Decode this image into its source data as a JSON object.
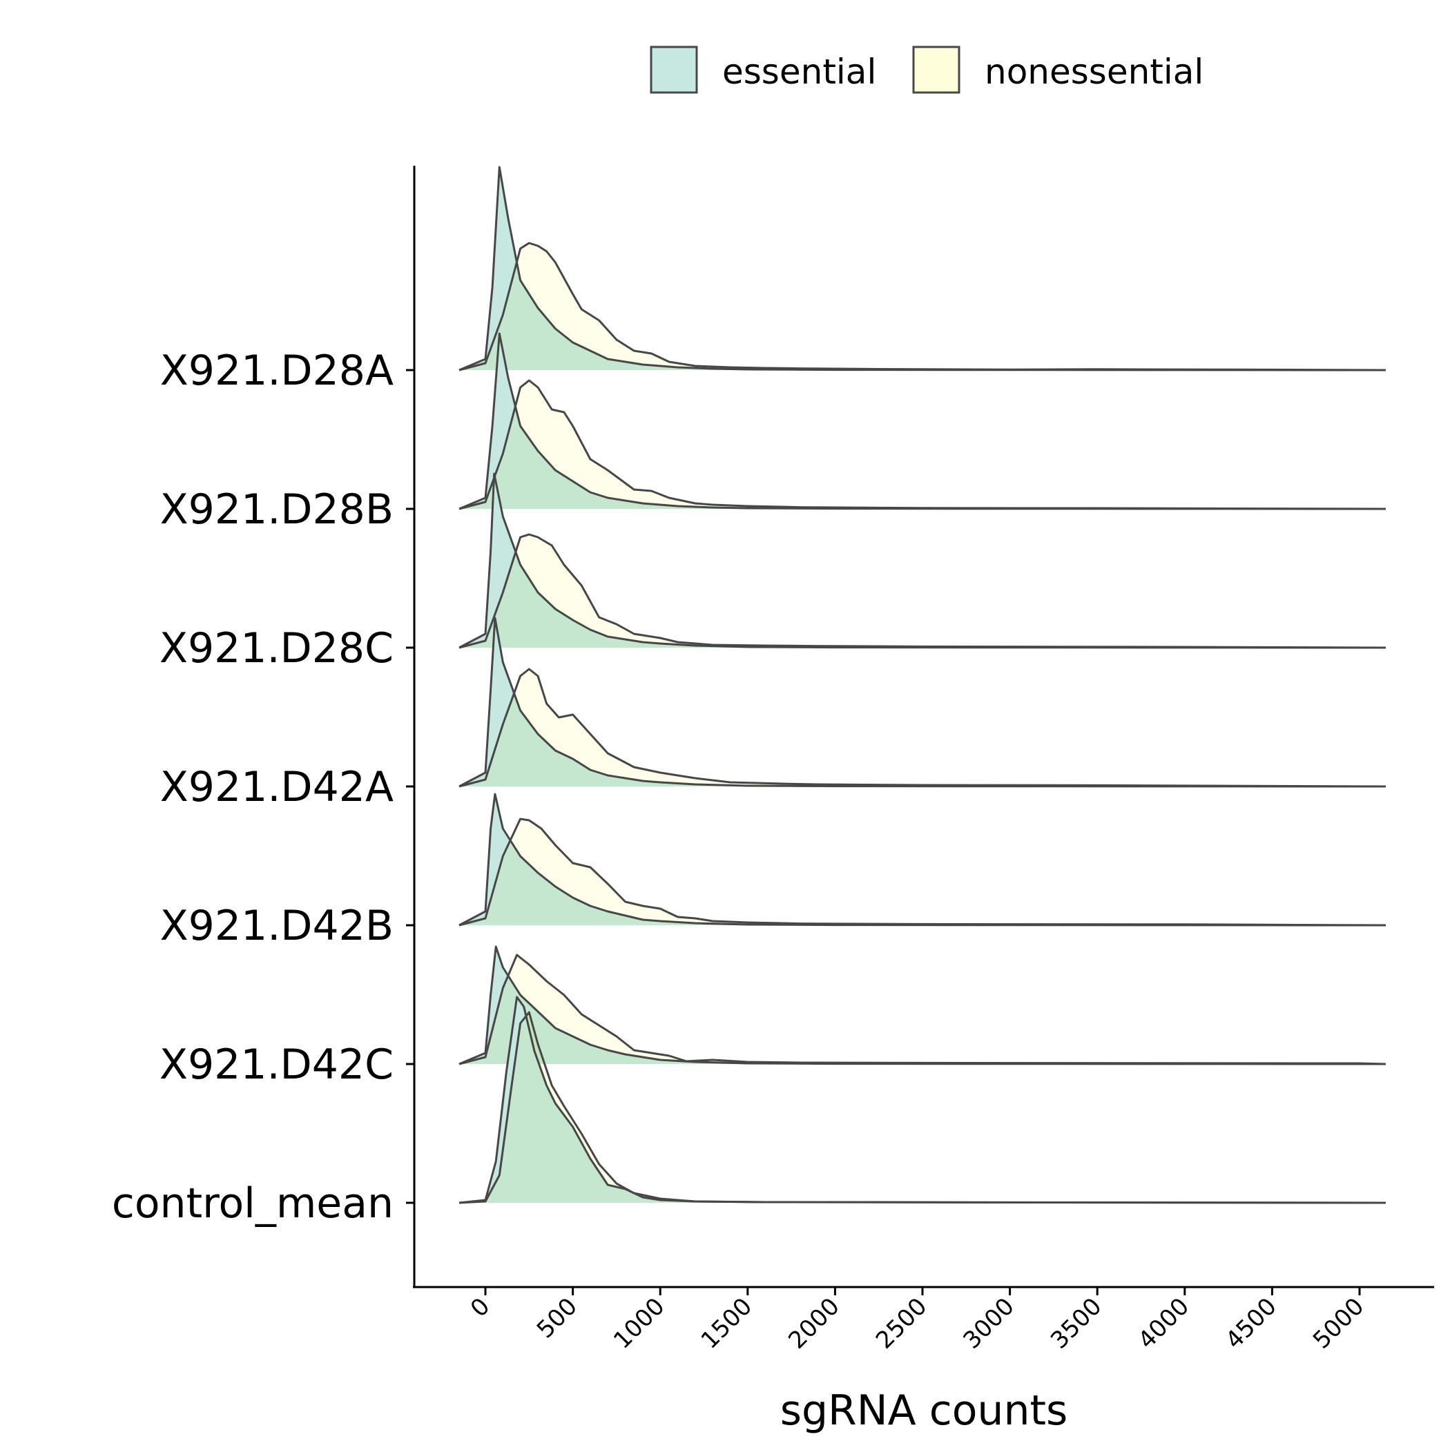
{
  "chart_data": {
    "type": "area",
    "subtype": "ridgeline-density",
    "xlabel": "sgRNA counts",
    "ylabel": "",
    "xlim": [
      -150,
      5150
    ],
    "x_ticks": [
      0,
      500,
      1000,
      1500,
      2000,
      2500,
      3000,
      3500,
      4000,
      4500,
      5000
    ],
    "x_tick_labels": [
      "0",
      "500",
      "1000",
      "1500",
      "2000",
      "2500",
      "3000",
      "3500",
      "4000",
      "4500",
      "5000"
    ],
    "categories": [
      "X921.D28A",
      "X921.D28B",
      "X921.D28C",
      "X921.D42A",
      "X921.D42B",
      "X921.D42C",
      "control_mean"
    ],
    "legend": {
      "position": "top",
      "entries": [
        {
          "label": "essential",
          "color": "#c6e8e1"
        },
        {
          "label": "nonessential",
          "color": "#fefedb"
        }
      ]
    },
    "grid": false,
    "density_unit_note": "",
    "series": [
      {
        "name": "X921.D28A",
        "essential": [
          [
            -150,
            0
          ],
          [
            0,
            0.08
          ],
          [
            40,
            0.6
          ],
          [
            80,
            1.47
          ],
          [
            130,
            1.1
          ],
          [
            200,
            0.65
          ],
          [
            300,
            0.45
          ],
          [
            400,
            0.3
          ],
          [
            500,
            0.2
          ],
          [
            600,
            0.14
          ],
          [
            700,
            0.08
          ],
          [
            800,
            0.06
          ],
          [
            900,
            0.04
          ],
          [
            1000,
            0.03
          ],
          [
            1100,
            0.02
          ],
          [
            1300,
            0.01
          ],
          [
            1500,
            0.005
          ],
          [
            2000,
            0.002
          ],
          [
            5150,
            0
          ]
        ],
        "nonessential": [
          [
            -150,
            0
          ],
          [
            0,
            0.05
          ],
          [
            100,
            0.4
          ],
          [
            200,
            0.88
          ],
          [
            250,
            0.92
          ],
          [
            300,
            0.9
          ],
          [
            350,
            0.86
          ],
          [
            400,
            0.78
          ],
          [
            500,
            0.55
          ],
          [
            550,
            0.44
          ],
          [
            650,
            0.36
          ],
          [
            750,
            0.22
          ],
          [
            850,
            0.14
          ],
          [
            950,
            0.12
          ],
          [
            1050,
            0.06
          ],
          [
            1200,
            0.03
          ],
          [
            1400,
            0.02
          ],
          [
            1600,
            0.015
          ],
          [
            1800,
            0.012
          ],
          [
            2200,
            0.008
          ],
          [
            3000,
            0.004
          ],
          [
            3500,
            0.006
          ],
          [
            4500,
            0.003
          ],
          [
            5150,
            0
          ]
        ]
      },
      {
        "name": "X921.D28B",
        "essential": [
          [
            -150,
            0
          ],
          [
            0,
            0.08
          ],
          [
            40,
            0.6
          ],
          [
            80,
            1.27
          ],
          [
            130,
            0.95
          ],
          [
            200,
            0.6
          ],
          [
            300,
            0.42
          ],
          [
            400,
            0.28
          ],
          [
            500,
            0.2
          ],
          [
            600,
            0.12
          ],
          [
            700,
            0.08
          ],
          [
            800,
            0.06
          ],
          [
            900,
            0.04
          ],
          [
            1000,
            0.03
          ],
          [
            1100,
            0.02
          ],
          [
            1300,
            0.01
          ],
          [
            1500,
            0.005
          ],
          [
            2000,
            0.002
          ],
          [
            5150,
            0
          ]
        ],
        "nonessential": [
          [
            -150,
            0
          ],
          [
            0,
            0.05
          ],
          [
            100,
            0.4
          ],
          [
            200,
            0.88
          ],
          [
            250,
            0.93
          ],
          [
            300,
            0.88
          ],
          [
            380,
            0.72
          ],
          [
            450,
            0.7
          ],
          [
            500,
            0.6
          ],
          [
            600,
            0.36
          ],
          [
            700,
            0.28
          ],
          [
            850,
            0.14
          ],
          [
            950,
            0.13
          ],
          [
            1050,
            0.08
          ],
          [
            1200,
            0.04
          ],
          [
            1300,
            0.03
          ],
          [
            1500,
            0.02
          ],
          [
            1800,
            0.012
          ],
          [
            2500,
            0.006
          ],
          [
            3500,
            0.005
          ],
          [
            5150,
            0
          ]
        ]
      },
      {
        "name": "X921.D28C",
        "essential": [
          [
            -150,
            0
          ],
          [
            0,
            0.1
          ],
          [
            30,
            0.7
          ],
          [
            50,
            1.26
          ],
          [
            100,
            0.95
          ],
          [
            200,
            0.6
          ],
          [
            300,
            0.4
          ],
          [
            400,
            0.28
          ],
          [
            500,
            0.2
          ],
          [
            600,
            0.13
          ],
          [
            700,
            0.08
          ],
          [
            800,
            0.06
          ],
          [
            900,
            0.04
          ],
          [
            1000,
            0.03
          ],
          [
            1200,
            0.015
          ],
          [
            1500,
            0.005
          ],
          [
            2000,
            0.002
          ],
          [
            5150,
            0
          ]
        ],
        "nonessential": [
          [
            -150,
            0
          ],
          [
            0,
            0.05
          ],
          [
            100,
            0.4
          ],
          [
            200,
            0.8
          ],
          [
            250,
            0.82
          ],
          [
            300,
            0.8
          ],
          [
            380,
            0.74
          ],
          [
            450,
            0.6
          ],
          [
            550,
            0.45
          ],
          [
            650,
            0.22
          ],
          [
            750,
            0.17
          ],
          [
            850,
            0.1
          ],
          [
            1000,
            0.07
          ],
          [
            1100,
            0.04
          ],
          [
            1300,
            0.02
          ],
          [
            1600,
            0.015
          ],
          [
            1900,
            0.012
          ],
          [
            2500,
            0.008
          ],
          [
            4000,
            0.005
          ],
          [
            5150,
            0
          ]
        ]
      },
      {
        "name": "X921.D42A",
        "essential": [
          [
            -150,
            0
          ],
          [
            0,
            0.1
          ],
          [
            30,
            0.7
          ],
          [
            55,
            1.22
          ],
          [
            100,
            0.9
          ],
          [
            200,
            0.55
          ],
          [
            300,
            0.38
          ],
          [
            400,
            0.26
          ],
          [
            500,
            0.2
          ],
          [
            600,
            0.12
          ],
          [
            700,
            0.08
          ],
          [
            800,
            0.06
          ],
          [
            900,
            0.04
          ],
          [
            1000,
            0.03
          ],
          [
            1200,
            0.015
          ],
          [
            1500,
            0.005
          ],
          [
            2000,
            0.002
          ],
          [
            5150,
            0
          ]
        ],
        "nonessential": [
          [
            -150,
            0
          ],
          [
            0,
            0.05
          ],
          [
            100,
            0.45
          ],
          [
            200,
            0.8
          ],
          [
            250,
            0.85
          ],
          [
            300,
            0.8
          ],
          [
            350,
            0.6
          ],
          [
            420,
            0.5
          ],
          [
            500,
            0.52
          ],
          [
            600,
            0.38
          ],
          [
            700,
            0.24
          ],
          [
            850,
            0.14
          ],
          [
            1000,
            0.1
          ],
          [
            1200,
            0.06
          ],
          [
            1400,
            0.03
          ],
          [
            1700,
            0.02
          ],
          [
            1900,
            0.015
          ],
          [
            2500,
            0.01
          ],
          [
            3500,
            0.008
          ],
          [
            5150,
            0
          ]
        ]
      },
      {
        "name": "X921.D42B",
        "essential": [
          [
            -150,
            0
          ],
          [
            0,
            0.1
          ],
          [
            30,
            0.7
          ],
          [
            55,
            0.95
          ],
          [
            100,
            0.7
          ],
          [
            200,
            0.5
          ],
          [
            300,
            0.38
          ],
          [
            400,
            0.28
          ],
          [
            500,
            0.2
          ],
          [
            600,
            0.14
          ],
          [
            700,
            0.1
          ],
          [
            800,
            0.07
          ],
          [
            900,
            0.04
          ],
          [
            1000,
            0.03
          ],
          [
            1200,
            0.015
          ],
          [
            1500,
            0.005
          ],
          [
            2000,
            0.002
          ],
          [
            5150,
            0
          ]
        ],
        "nonessential": [
          [
            -150,
            0
          ],
          [
            0,
            0.05
          ],
          [
            100,
            0.5
          ],
          [
            200,
            0.77
          ],
          [
            250,
            0.76
          ],
          [
            320,
            0.7
          ],
          [
            400,
            0.58
          ],
          [
            500,
            0.45
          ],
          [
            600,
            0.42
          ],
          [
            700,
            0.3
          ],
          [
            800,
            0.17
          ],
          [
            900,
            0.14
          ],
          [
            1000,
            0.12
          ],
          [
            1100,
            0.06
          ],
          [
            1200,
            0.05
          ],
          [
            1300,
            0.03
          ],
          [
            1500,
            0.02
          ],
          [
            1800,
            0.012
          ],
          [
            2500,
            0.008
          ],
          [
            4000,
            0.006
          ],
          [
            5150,
            0
          ]
        ]
      },
      {
        "name": "X921.D42C",
        "essential": [
          [
            -150,
            0
          ],
          [
            0,
            0.08
          ],
          [
            30,
            0.5
          ],
          [
            60,
            0.85
          ],
          [
            100,
            0.7
          ],
          [
            200,
            0.5
          ],
          [
            300,
            0.38
          ],
          [
            400,
            0.26
          ],
          [
            500,
            0.2
          ],
          [
            600,
            0.14
          ],
          [
            700,
            0.1
          ],
          [
            800,
            0.07
          ],
          [
            900,
            0.05
          ],
          [
            1000,
            0.03
          ],
          [
            1200,
            0.015
          ],
          [
            1500,
            0.005
          ],
          [
            2000,
            0.002
          ],
          [
            5150,
            0
          ]
        ],
        "nonessential": [
          [
            -150,
            0
          ],
          [
            0,
            0.05
          ],
          [
            100,
            0.55
          ],
          [
            180,
            0.79
          ],
          [
            250,
            0.72
          ],
          [
            350,
            0.6
          ],
          [
            450,
            0.5
          ],
          [
            550,
            0.36
          ],
          [
            650,
            0.28
          ],
          [
            750,
            0.2
          ],
          [
            850,
            0.1
          ],
          [
            950,
            0.08
          ],
          [
            1050,
            0.06
          ],
          [
            1150,
            0.02
          ],
          [
            1300,
            0.03
          ],
          [
            1500,
            0.015
          ],
          [
            1800,
            0.01
          ],
          [
            2500,
            0.008
          ],
          [
            5000,
            0.005
          ],
          [
            5150,
            0
          ]
        ]
      },
      {
        "name": "control_mean",
        "essential": [
          [
            -150,
            0
          ],
          [
            0,
            0.02
          ],
          [
            60,
            0.3
          ],
          [
            120,
            0.95
          ],
          [
            180,
            1.49
          ],
          [
            220,
            1.42
          ],
          [
            280,
            1.1
          ],
          [
            350,
            0.85
          ],
          [
            400,
            0.72
          ],
          [
            500,
            0.55
          ],
          [
            600,
            0.32
          ],
          [
            700,
            0.13
          ],
          [
            800,
            0.1
          ],
          [
            900,
            0.04
          ],
          [
            1000,
            0.02
          ],
          [
            1200,
            0.01
          ],
          [
            1600,
            0.005
          ],
          [
            5150,
            0
          ]
        ],
        "nonessential": [
          [
            -150,
            0
          ],
          [
            0,
            0.01
          ],
          [
            80,
            0.2
          ],
          [
            150,
            0.85
          ],
          [
            200,
            1.3
          ],
          [
            250,
            1.38
          ],
          [
            300,
            1.15
          ],
          [
            380,
            0.85
          ],
          [
            450,
            0.7
          ],
          [
            550,
            0.5
          ],
          [
            650,
            0.28
          ],
          [
            750,
            0.14
          ],
          [
            850,
            0.07
          ],
          [
            1000,
            0.03
          ],
          [
            1200,
            0.01
          ],
          [
            1600,
            0.005
          ],
          [
            5150,
            0
          ]
        ]
      }
    ]
  },
  "style": {
    "essential_color": "#c6e8e1",
    "nonessential_color": "#fefedb",
    "overlap_color": "#e1f4cc",
    "line_color": "#474747",
    "axis_color": "#000000"
  }
}
